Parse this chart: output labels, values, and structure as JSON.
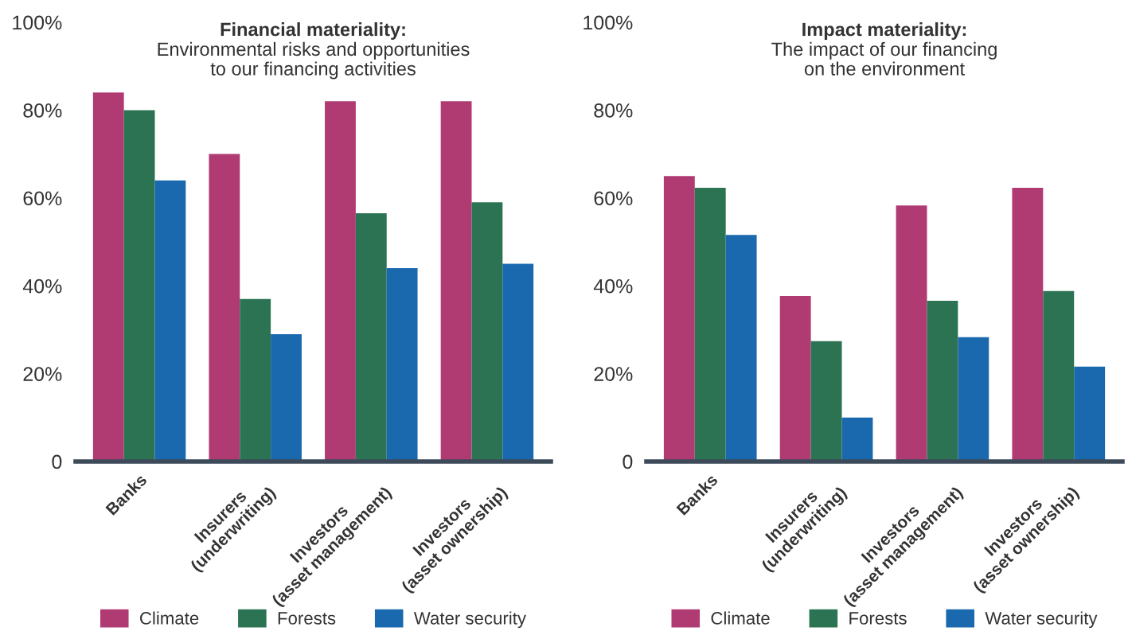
{
  "chart_data": [
    {
      "type": "bar",
      "title": "Financial materiality:",
      "subtitle": "Environmental risks and opportunities\nto our financing activities",
      "categories": [
        "Banks",
        "Insurers\n(underwriting)",
        "Investors\n(asset management)",
        "Investors\n(asset ownership)"
      ],
      "series": [
        {
          "name": "Climate",
          "color": "#b03a72",
          "values": [
            84,
            70,
            82,
            82
          ]
        },
        {
          "name": "Forests",
          "color": "#2b7352",
          "values": [
            80,
            37,
            56.5,
            59
          ]
        },
        {
          "name": "Water security",
          "color": "#1a68ad",
          "values": [
            64,
            29,
            44,
            45
          ]
        }
      ],
      "ylim": [
        0,
        100
      ],
      "yticks": [
        {
          "value": 0,
          "label": "0"
        },
        {
          "value": 20,
          "label": "20%"
        },
        {
          "value": 40,
          "label": "40%"
        },
        {
          "value": 60,
          "label": "60%"
        },
        {
          "value": 80,
          "label": "80%"
        },
        {
          "value": 100,
          "label": "100%"
        }
      ],
      "grid": false,
      "legend": "bottom"
    },
    {
      "type": "bar",
      "title": "Impact materiality:",
      "subtitle": "The impact of our financing\non the environment",
      "categories": [
        "Banks",
        "Insurers\n(underwriting)",
        "Investors\n(asset management)",
        "Investors\n(asset ownership)"
      ],
      "series": [
        {
          "name": "Climate",
          "color": "#b03a72",
          "values": [
            65,
            37.7,
            58.3,
            62.3
          ]
        },
        {
          "name": "Forests",
          "color": "#2b7352",
          "values": [
            62.3,
            27.4,
            36.6,
            38.8
          ]
        },
        {
          "name": "Water security",
          "color": "#1a68ad",
          "values": [
            51.6,
            10,
            28.3,
            21.6
          ]
        }
      ],
      "ylim": [
        0,
        100
      ],
      "yticks": [
        {
          "value": 0,
          "label": "0"
        },
        {
          "value": 20,
          "label": "20%"
        },
        {
          "value": 40,
          "label": "40%"
        },
        {
          "value": 60,
          "label": "60%"
        },
        {
          "value": 80,
          "label": "80%"
        },
        {
          "value": 100,
          "label": "100%"
        }
      ],
      "grid": false,
      "legend": "bottom"
    }
  ]
}
